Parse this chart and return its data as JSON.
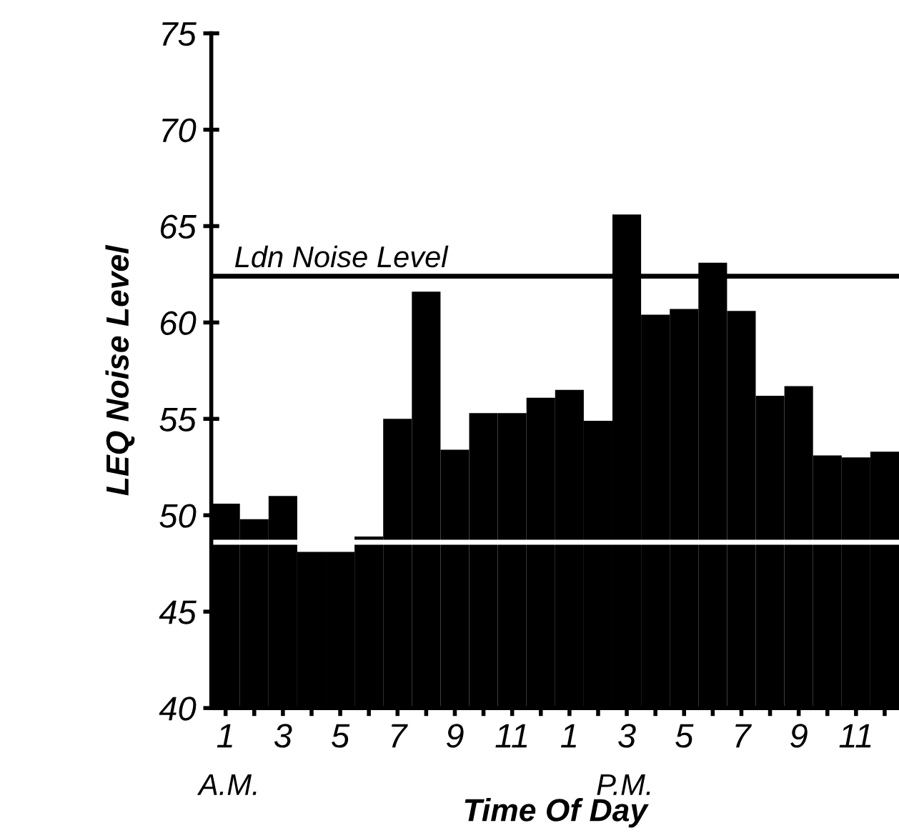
{
  "chart_data": {
    "type": "bar",
    "xlabel": "Time Of Day",
    "ylabel": "LEQ Noise Level",
    "categories": [
      "1",
      null,
      "3",
      null,
      "5",
      null,
      "7",
      null,
      "9",
      null,
      "11",
      null,
      "1",
      null,
      "3",
      null,
      "5",
      null,
      "7",
      null,
      "9",
      null,
      "11",
      null
    ],
    "values": [
      50.6,
      49.8,
      51.0,
      48.1,
      48.1,
      48.9,
      55.0,
      61.6,
      53.4,
      55.3,
      55.3,
      56.1,
      56.5,
      54.9,
      65.6,
      60.4,
      60.7,
      63.1,
      60.6,
      56.2,
      56.7,
      53.1,
      53.0,
      53.3
    ],
    "color": "#000000",
    "ylim": [
      40,
      75
    ],
    "yticks": [
      40,
      45,
      50,
      55,
      60,
      65,
      70,
      75
    ],
    "ref_lines": [
      {
        "axis": "y",
        "value": 62.4,
        "label": "Ldn Noise Level",
        "color": "#000000"
      },
      {
        "axis": "y",
        "value": 48.6,
        "color": "#ffffff"
      }
    ],
    "annotations": [
      "A.M.",
      "P.M."
    ],
    "grid": false,
    "legend": false
  }
}
